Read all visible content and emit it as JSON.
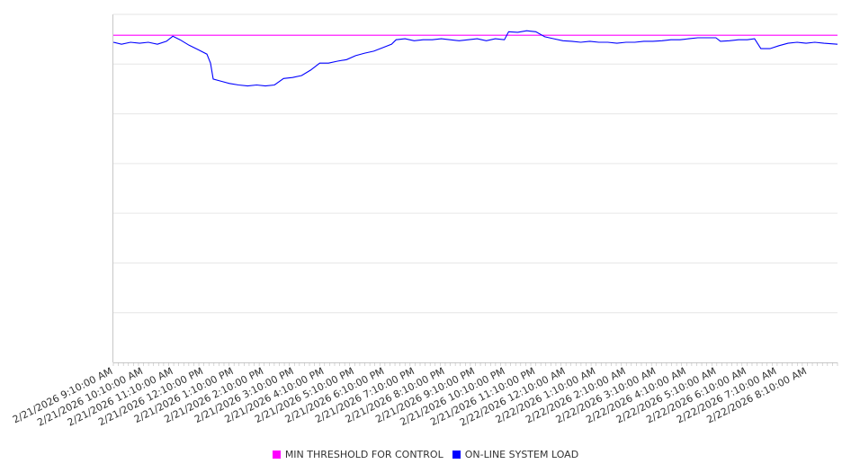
{
  "chart_data": {
    "type": "line",
    "title": "",
    "xlabel": "",
    "ylabel": "",
    "x_units": "hours since 2/21/2026 9:10:00 AM",
    "xlim": [
      0,
      24
    ],
    "ylim": [
      0,
      7
    ],
    "y_tick_labels_shown": false,
    "grid": "horizontal",
    "legend_position": "bottom-center",
    "x_tick_labels": [
      "2/21/2026 9:10:00 AM",
      "2/21/2026 10:10:00 AM",
      "2/21/2026 11:10:00 AM",
      "2/21/2026 12:10:00 PM",
      "2/21/2026 1:10:00 PM",
      "2/21/2026 2:10:00 PM",
      "2/21/2026 3:10:00 PM",
      "2/21/2026 4:10:00 PM",
      "2/21/2026 5:10:00 PM",
      "2/21/2026 6:10:00 PM",
      "2/21/2026 7:10:00 PM",
      "2/21/2026 8:10:00 PM",
      "2/21/2026 9:10:00 PM",
      "2/21/2026 10:10:00 PM",
      "2/21/2026 11:10:00 PM",
      "2/22/2026 12:10:00 AM",
      "2/22/2026 1:10:00 AM",
      "2/22/2026 2:10:00 AM",
      "2/22/2026 3:10:00 AM",
      "2/22/2026 4:10:00 AM",
      "2/22/2026 5:10:00 AM",
      "2/22/2026 6:10:00 AM",
      "2/22/2026 7:10:00 AM",
      "2/22/2026 8:10:00 AM"
    ],
    "series": [
      {
        "name": "MIN THRESHOLD FOR CONTROL",
        "color": "#ff00ff",
        "points": [
          [
            0,
            6.58
          ],
          [
            24,
            6.58
          ]
        ]
      },
      {
        "name": "ON-LINE SYSTEM LOAD",
        "color": "#0000ff",
        "points": [
          [
            0,
            6.44
          ],
          [
            0.27,
            6.4
          ],
          [
            0.57,
            6.44
          ],
          [
            0.87,
            6.42
          ],
          [
            1.16,
            6.44
          ],
          [
            1.46,
            6.4
          ],
          [
            1.76,
            6.46
          ],
          [
            1.97,
            6.56
          ],
          [
            2.21,
            6.49
          ],
          [
            2.51,
            6.38
          ],
          [
            2.81,
            6.29
          ],
          [
            3.1,
            6.2
          ],
          [
            3.22,
            6.02
          ],
          [
            3.31,
            5.7
          ],
          [
            3.55,
            5.66
          ],
          [
            3.85,
            5.61
          ],
          [
            4.15,
            5.58
          ],
          [
            4.45,
            5.56
          ],
          [
            4.75,
            5.58
          ],
          [
            5.04,
            5.56
          ],
          [
            5.34,
            5.58
          ],
          [
            5.64,
            5.71
          ],
          [
            5.94,
            5.73
          ],
          [
            6.24,
            5.77
          ],
          [
            6.54,
            5.88
          ],
          [
            6.84,
            6.02
          ],
          [
            7.13,
            6.02
          ],
          [
            7.43,
            6.06
          ],
          [
            7.73,
            6.09
          ],
          [
            8.03,
            6.17
          ],
          [
            8.33,
            6.22
          ],
          [
            8.63,
            6.26
          ],
          [
            8.93,
            6.33
          ],
          [
            9.22,
            6.4
          ],
          [
            9.37,
            6.49
          ],
          [
            9.67,
            6.51
          ],
          [
            9.97,
            6.47
          ],
          [
            10.27,
            6.49
          ],
          [
            10.57,
            6.49
          ],
          [
            10.87,
            6.51
          ],
          [
            11.16,
            6.49
          ],
          [
            11.46,
            6.47
          ],
          [
            11.76,
            6.49
          ],
          [
            12.06,
            6.51
          ],
          [
            12.36,
            6.47
          ],
          [
            12.66,
            6.51
          ],
          [
            12.96,
            6.49
          ],
          [
            13.1,
            6.65
          ],
          [
            13.4,
            6.64
          ],
          [
            13.7,
            6.67
          ],
          [
            14.0,
            6.65
          ],
          [
            14.3,
            6.55
          ],
          [
            14.6,
            6.51
          ],
          [
            14.9,
            6.47
          ],
          [
            15.19,
            6.46
          ],
          [
            15.49,
            6.44
          ],
          [
            15.79,
            6.46
          ],
          [
            16.09,
            6.44
          ],
          [
            16.39,
            6.44
          ],
          [
            16.69,
            6.42
          ],
          [
            16.99,
            6.44
          ],
          [
            17.28,
            6.44
          ],
          [
            17.58,
            6.46
          ],
          [
            17.88,
            6.46
          ],
          [
            18.18,
            6.47
          ],
          [
            18.48,
            6.49
          ],
          [
            18.78,
            6.49
          ],
          [
            19.07,
            6.51
          ],
          [
            19.37,
            6.53
          ],
          [
            19.67,
            6.53
          ],
          [
            19.97,
            6.53
          ],
          [
            20.12,
            6.46
          ],
          [
            20.42,
            6.47
          ],
          [
            20.72,
            6.49
          ],
          [
            21.01,
            6.49
          ],
          [
            21.25,
            6.51
          ],
          [
            21.46,
            6.31
          ],
          [
            21.76,
            6.31
          ],
          [
            22.06,
            6.37
          ],
          [
            22.36,
            6.42
          ],
          [
            22.66,
            6.44
          ],
          [
            22.96,
            6.42
          ],
          [
            23.25,
            6.44
          ],
          [
            23.55,
            6.42
          ],
          [
            24.0,
            6.4
          ]
        ]
      }
    ]
  }
}
